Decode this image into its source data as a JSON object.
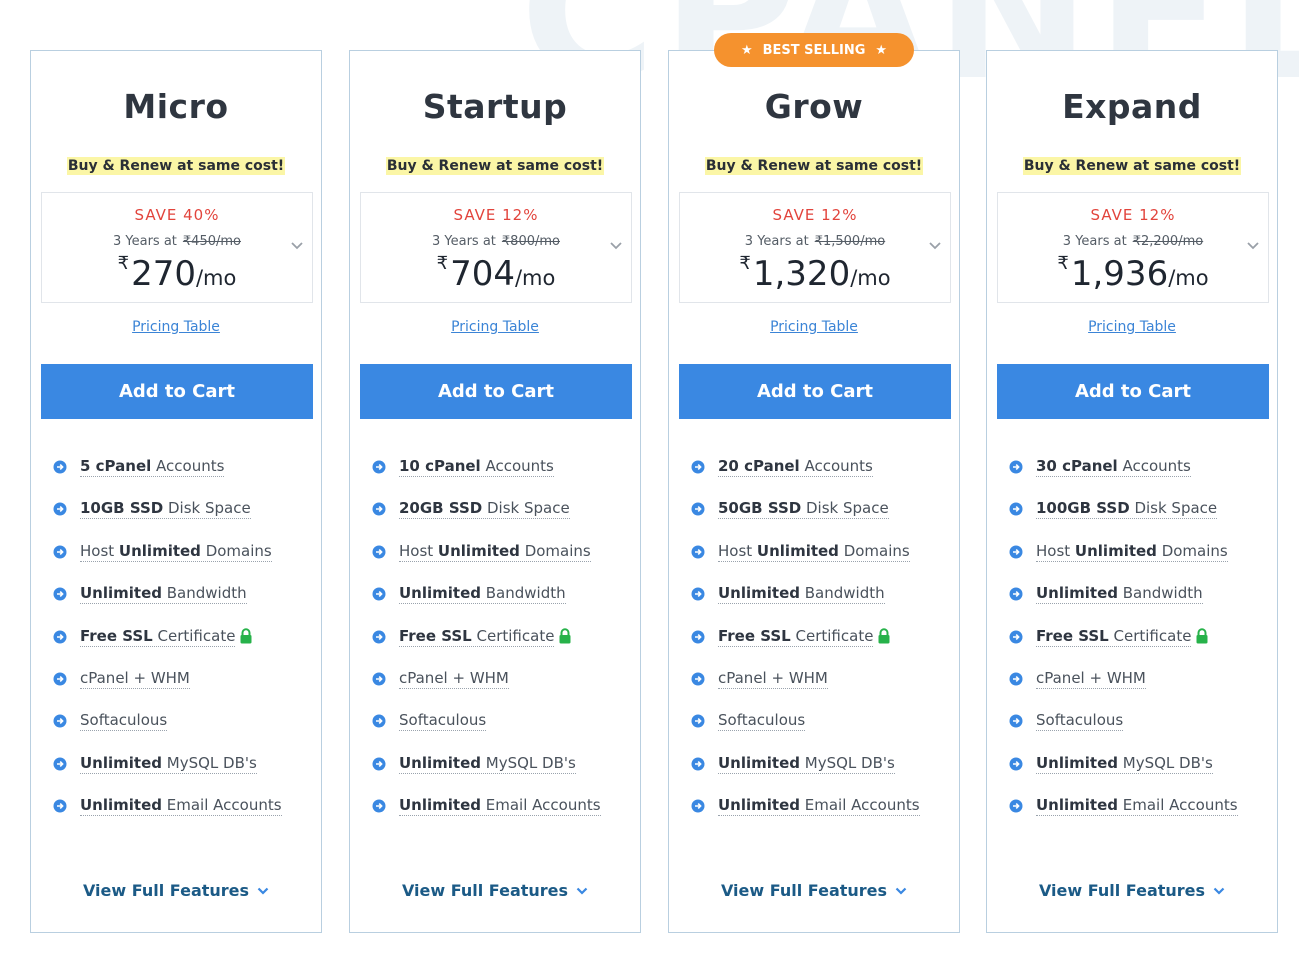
{
  "watermark": "CPANEL",
  "badge": {
    "label": "BEST SELLING"
  },
  "common": {
    "renew_text": "Buy & Renew at same cost!",
    "pricing_link": "Pricing Table",
    "cart_label": "Add to Cart",
    "view_full": "View Full Features",
    "term_label": "3 Years at",
    "currency": "₹",
    "per_mo": "/mo"
  },
  "plans": [
    {
      "name": "Micro",
      "save": "SAVE 40%",
      "old_price": "₹450/mo",
      "price": "270",
      "features": [
        {
          "bold": "5 cPanel",
          "rest": " Accounts",
          "pre": ""
        },
        {
          "bold": "10GB SSD",
          "rest": " Disk Space",
          "pre": ""
        },
        {
          "pre": "Host ",
          "bold": "Unlimited",
          "rest": " Domains"
        },
        {
          "bold": "Unlimited",
          "rest": " Bandwidth",
          "pre": ""
        },
        {
          "bold": "Free SSL",
          "rest": " Certificate",
          "pre": "",
          "lock": true
        },
        {
          "pre": "cPanel + WHM",
          "bold": "",
          "rest": ""
        },
        {
          "pre": "Softaculous",
          "bold": "",
          "rest": ""
        },
        {
          "bold": "Unlimited",
          "rest": " MySQL DB's",
          "pre": ""
        },
        {
          "bold": "Unlimited",
          "rest": " Email Accounts",
          "pre": ""
        }
      ]
    },
    {
      "name": "Startup",
      "save": "SAVE 12%",
      "old_price": "₹800/mo",
      "price": "704",
      "features": [
        {
          "bold": "10 cPanel",
          "rest": " Accounts",
          "pre": ""
        },
        {
          "bold": "20GB SSD",
          "rest": " Disk Space",
          "pre": ""
        },
        {
          "pre": "Host ",
          "bold": "Unlimited",
          "rest": " Domains"
        },
        {
          "bold": "Unlimited",
          "rest": " Bandwidth",
          "pre": ""
        },
        {
          "bold": "Free SSL",
          "rest": " Certificate",
          "pre": "",
          "lock": true
        },
        {
          "pre": "cPanel + WHM",
          "bold": "",
          "rest": ""
        },
        {
          "pre": "Softaculous",
          "bold": "",
          "rest": ""
        },
        {
          "bold": "Unlimited",
          "rest": " MySQL DB's",
          "pre": ""
        },
        {
          "bold": "Unlimited",
          "rest": " Email Accounts",
          "pre": ""
        }
      ]
    },
    {
      "name": "Grow",
      "save": "SAVE 12%",
      "old_price": "₹1,500/mo",
      "price": "1,320",
      "features": [
        {
          "bold": "20 cPanel",
          "rest": " Accounts",
          "pre": ""
        },
        {
          "bold": "50GB SSD",
          "rest": " Disk Space",
          "pre": ""
        },
        {
          "pre": "Host ",
          "bold": "Unlimited",
          "rest": " Domains"
        },
        {
          "bold": "Unlimited",
          "rest": " Bandwidth",
          "pre": ""
        },
        {
          "bold": "Free SSL",
          "rest": " Certificate",
          "pre": "",
          "lock": true
        },
        {
          "pre": "cPanel + WHM",
          "bold": "",
          "rest": ""
        },
        {
          "pre": "Softaculous",
          "bold": "",
          "rest": ""
        },
        {
          "bold": "Unlimited",
          "rest": " MySQL DB's",
          "pre": ""
        },
        {
          "bold": "Unlimited",
          "rest": " Email Accounts",
          "pre": ""
        }
      ]
    },
    {
      "name": "Expand",
      "save": "SAVE 12%",
      "old_price": "₹2,200/mo",
      "price": "1,936",
      "features": [
        {
          "bold": "30 cPanel",
          "rest": " Accounts",
          "pre": ""
        },
        {
          "bold": "100GB SSD",
          "rest": " Disk Space",
          "pre": ""
        },
        {
          "pre": "Host ",
          "bold": "Unlimited",
          "rest": " Domains"
        },
        {
          "bold": "Unlimited",
          "rest": " Bandwidth",
          "pre": ""
        },
        {
          "bold": "Free SSL",
          "rest": " Certificate",
          "pre": "",
          "lock": true
        },
        {
          "pre": "cPanel + WHM",
          "bold": "",
          "rest": ""
        },
        {
          "pre": "Softaculous",
          "bold": "",
          "rest": ""
        },
        {
          "bold": "Unlimited",
          "rest": " MySQL DB's",
          "pre": ""
        },
        {
          "bold": "Unlimited",
          "rest": " Email Accounts",
          "pre": ""
        }
      ]
    }
  ],
  "colors": {
    "accent": "#3a88e2",
    "save_red": "#e2443c",
    "badge_orange": "#f5922e",
    "highlight": "#fbf6a6",
    "link_dark": "#1b5a86",
    "lock_green": "#27b24a"
  },
  "icons": {
    "feature_bullet": "arrow-circle-right-icon",
    "ssl": "lock-icon",
    "dropdown": "chevron-down-icon",
    "badge": "star-icon"
  }
}
